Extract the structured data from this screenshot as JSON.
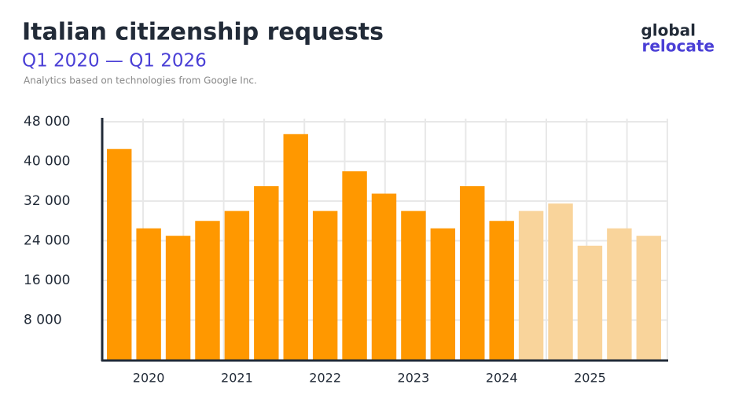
{
  "header": {
    "logo_top": "global",
    "logo_bottom": "relocate"
  },
  "chart_data": {
    "type": "bar",
    "title": "Italian citizenship requests",
    "subtitle": "Q1 2020 — Q1 2026",
    "note": "Analytics based on technologies from Google Inc.",
    "categories": [
      null,
      "2020",
      null,
      null,
      "2021",
      null,
      null,
      "2022",
      null,
      null,
      "2023",
      null,
      null,
      "2024",
      null,
      null,
      "2025",
      null,
      null
    ],
    "values": [
      42500,
      26500,
      25000,
      28000,
      30000,
      35000,
      45500,
      30000,
      38000,
      33500,
      30000,
      26500,
      35000,
      28000,
      30000,
      31500,
      23000,
      26500,
      25000
    ],
    "colors": [
      "#ff9800",
      "#ff9800",
      "#ff9800",
      "#ff9800",
      "#ff9800",
      "#ff9800",
      "#ff9800",
      "#ff9800",
      "#ff9800",
      "#ff9800",
      "#ff9800",
      "#ff9800",
      "#ff9800",
      "#ff9800",
      "#f9d49b",
      "#f9d49b",
      "#f9d49b",
      "#f9d49b",
      "#f9d49b"
    ],
    "ylim": [
      0,
      48000
    ],
    "yticks": [
      {
        "value": 8000,
        "label": "8 000"
      },
      {
        "value": 16000,
        "label": "16 000"
      },
      {
        "value": 24000,
        "label": "24 000"
      },
      {
        "value": 32000,
        "label": "32 000"
      },
      {
        "value": 40000,
        "label": "40 000"
      },
      {
        "value": 48000,
        "label": "48 000"
      }
    ],
    "grid": true
  }
}
